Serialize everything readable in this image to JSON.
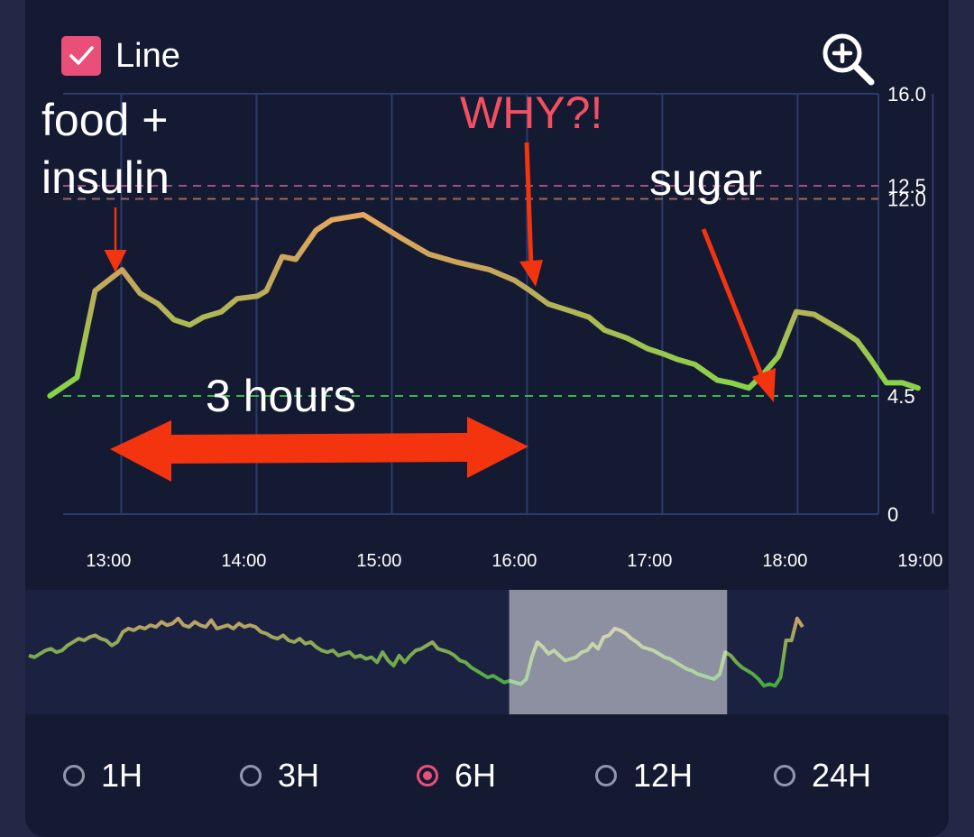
{
  "toggle": {
    "label": "Line",
    "checked": true
  },
  "range_options": [
    {
      "label": "1H",
      "selected": false
    },
    {
      "label": "3H",
      "selected": false
    },
    {
      "label": "6H",
      "selected": true
    },
    {
      "label": "12H",
      "selected": false
    },
    {
      "label": "24H",
      "selected": false
    }
  ],
  "annotations": {
    "food_line1": "food +",
    "food_line2": "insulin",
    "why": "WHY?!",
    "sugar": "sugar",
    "duration": "3 hours"
  },
  "colors": {
    "accent": "#ea4f79",
    "arrow": "#f4340f",
    "annotation_red": "#f25060",
    "low_line": "#38b84a",
    "high_line": "#9a6a62",
    "very_high_line": "#a0507a"
  },
  "chart_data": {
    "type": "line",
    "x_tick_labels": [
      "13:00",
      "14:00",
      "15:00",
      "16:00",
      "17:00",
      "18:00",
      "19:00"
    ],
    "y_tick_labels": [
      "0",
      "4.5",
      "12.0",
      "12.5",
      "16.0"
    ],
    "ylim": [
      0,
      16
    ],
    "grid": true,
    "thresholds": [
      {
        "label": "4.5",
        "value": 4.5,
        "color": "#38b84a"
      },
      {
        "label": "12.0",
        "value": 12.0,
        "color": "#9a6a62"
      },
      {
        "label": "12.5",
        "value": 12.5,
        "color": "#a0507a"
      }
    ],
    "series": [
      {
        "x": [
          "12:34",
          "12:46",
          "12:54",
          "13:06",
          "13:14",
          "13:22",
          "13:29",
          "13:36",
          "13:42",
          "13:50",
          "13:57",
          "14:06",
          "14:10",
          "14:17",
          "14:23",
          "14:32",
          "14:39",
          "14:46",
          "14:53",
          "15:10",
          "15:22",
          "15:34",
          "15:49",
          "16:00",
          "16:07",
          "16:15",
          "16:26",
          "16:33",
          "16:40",
          "16:50",
          "16:59",
          "17:06",
          "17:12",
          "17:20",
          "17:30",
          "17:36",
          "17:44",
          "17:50",
          "17:57",
          "18:05",
          "18:13",
          "18:19",
          "18:25",
          "18:32",
          "18:38",
          "18:45",
          "18:52",
          "18:59"
        ],
        "y": [
          4.5,
          5.2,
          8.5,
          9.3,
          8.4,
          8.0,
          7.4,
          7.2,
          7.5,
          7.7,
          8.2,
          8.3,
          8.5,
          9.8,
          9.7,
          10.8,
          11.2,
          11.3,
          11.4,
          10.5,
          9.9,
          9.6,
          9.3,
          8.9,
          8.5,
          8.0,
          7.7,
          7.5,
          7.0,
          6.7,
          6.3,
          6.1,
          5.9,
          5.7,
          5.1,
          5.0,
          4.8,
          5.3,
          6.0,
          7.7,
          7.6,
          7.3,
          7.0,
          6.6,
          5.9,
          5.0,
          5.0,
          4.8
        ]
      }
    ]
  },
  "navigator_data": {
    "y": [
      4.6,
      4.5,
      4.7,
      4.9,
      5.0,
      4.8,
      4.9,
      5.2,
      5.4,
      5.6,
      5.5,
      5.7,
      5.8,
      5.6,
      5.5,
      5.2,
      5.4,
      6.0,
      6.2,
      6.1,
      6.3,
      6.2,
      6.4,
      6.3,
      6.6,
      6.4,
      6.5,
      6.8,
      6.4,
      6.3,
      6.6,
      6.4,
      6.3,
      6.7,
      6.2,
      6.3,
      6.4,
      6.2,
      6.5,
      6.3,
      6.4,
      6.3,
      6.0,
      5.9,
      5.7,
      5.6,
      5.8,
      5.5,
      5.4,
      5.6,
      5.3,
      5.4,
      5.1,
      4.9,
      4.8,
      4.9,
      4.6,
      4.7,
      4.8,
      4.5,
      4.6,
      4.4,
      4.5,
      4.2,
      4.8,
      4.3,
      4.0,
      4.6,
      4.2,
      4.6,
      4.9,
      5.0,
      5.2,
      5.4,
      5.0,
      4.9,
      4.8,
      4.6,
      4.3,
      4.2,
      3.9,
      3.7,
      3.5,
      3.3,
      3.4,
      3.2,
      3.0,
      3.1,
      3.0,
      2.9,
      3.2,
      4.5,
      5.4,
      5.1,
      4.7,
      4.9,
      4.6,
      4.3,
      4.4,
      4.5,
      4.8,
      4.9,
      5.3,
      5.0,
      5.7,
      5.8,
      6.2,
      6.1,
      5.9,
      5.6,
      5.4,
      5.1,
      5.0,
      4.9,
      4.7,
      4.5,
      4.4,
      4.2,
      4.0,
      3.8,
      3.7,
      3.5,
      3.4,
      3.3,
      3.2,
      3.5,
      4.8,
      4.6,
      4.2,
      3.9,
      3.7,
      3.5,
      3.2,
      2.8,
      2.9,
      2.8,
      3.3,
      5.5,
      5.5,
      6.8,
      6.3
    ],
    "window": [
      0.524,
      0.76
    ]
  }
}
